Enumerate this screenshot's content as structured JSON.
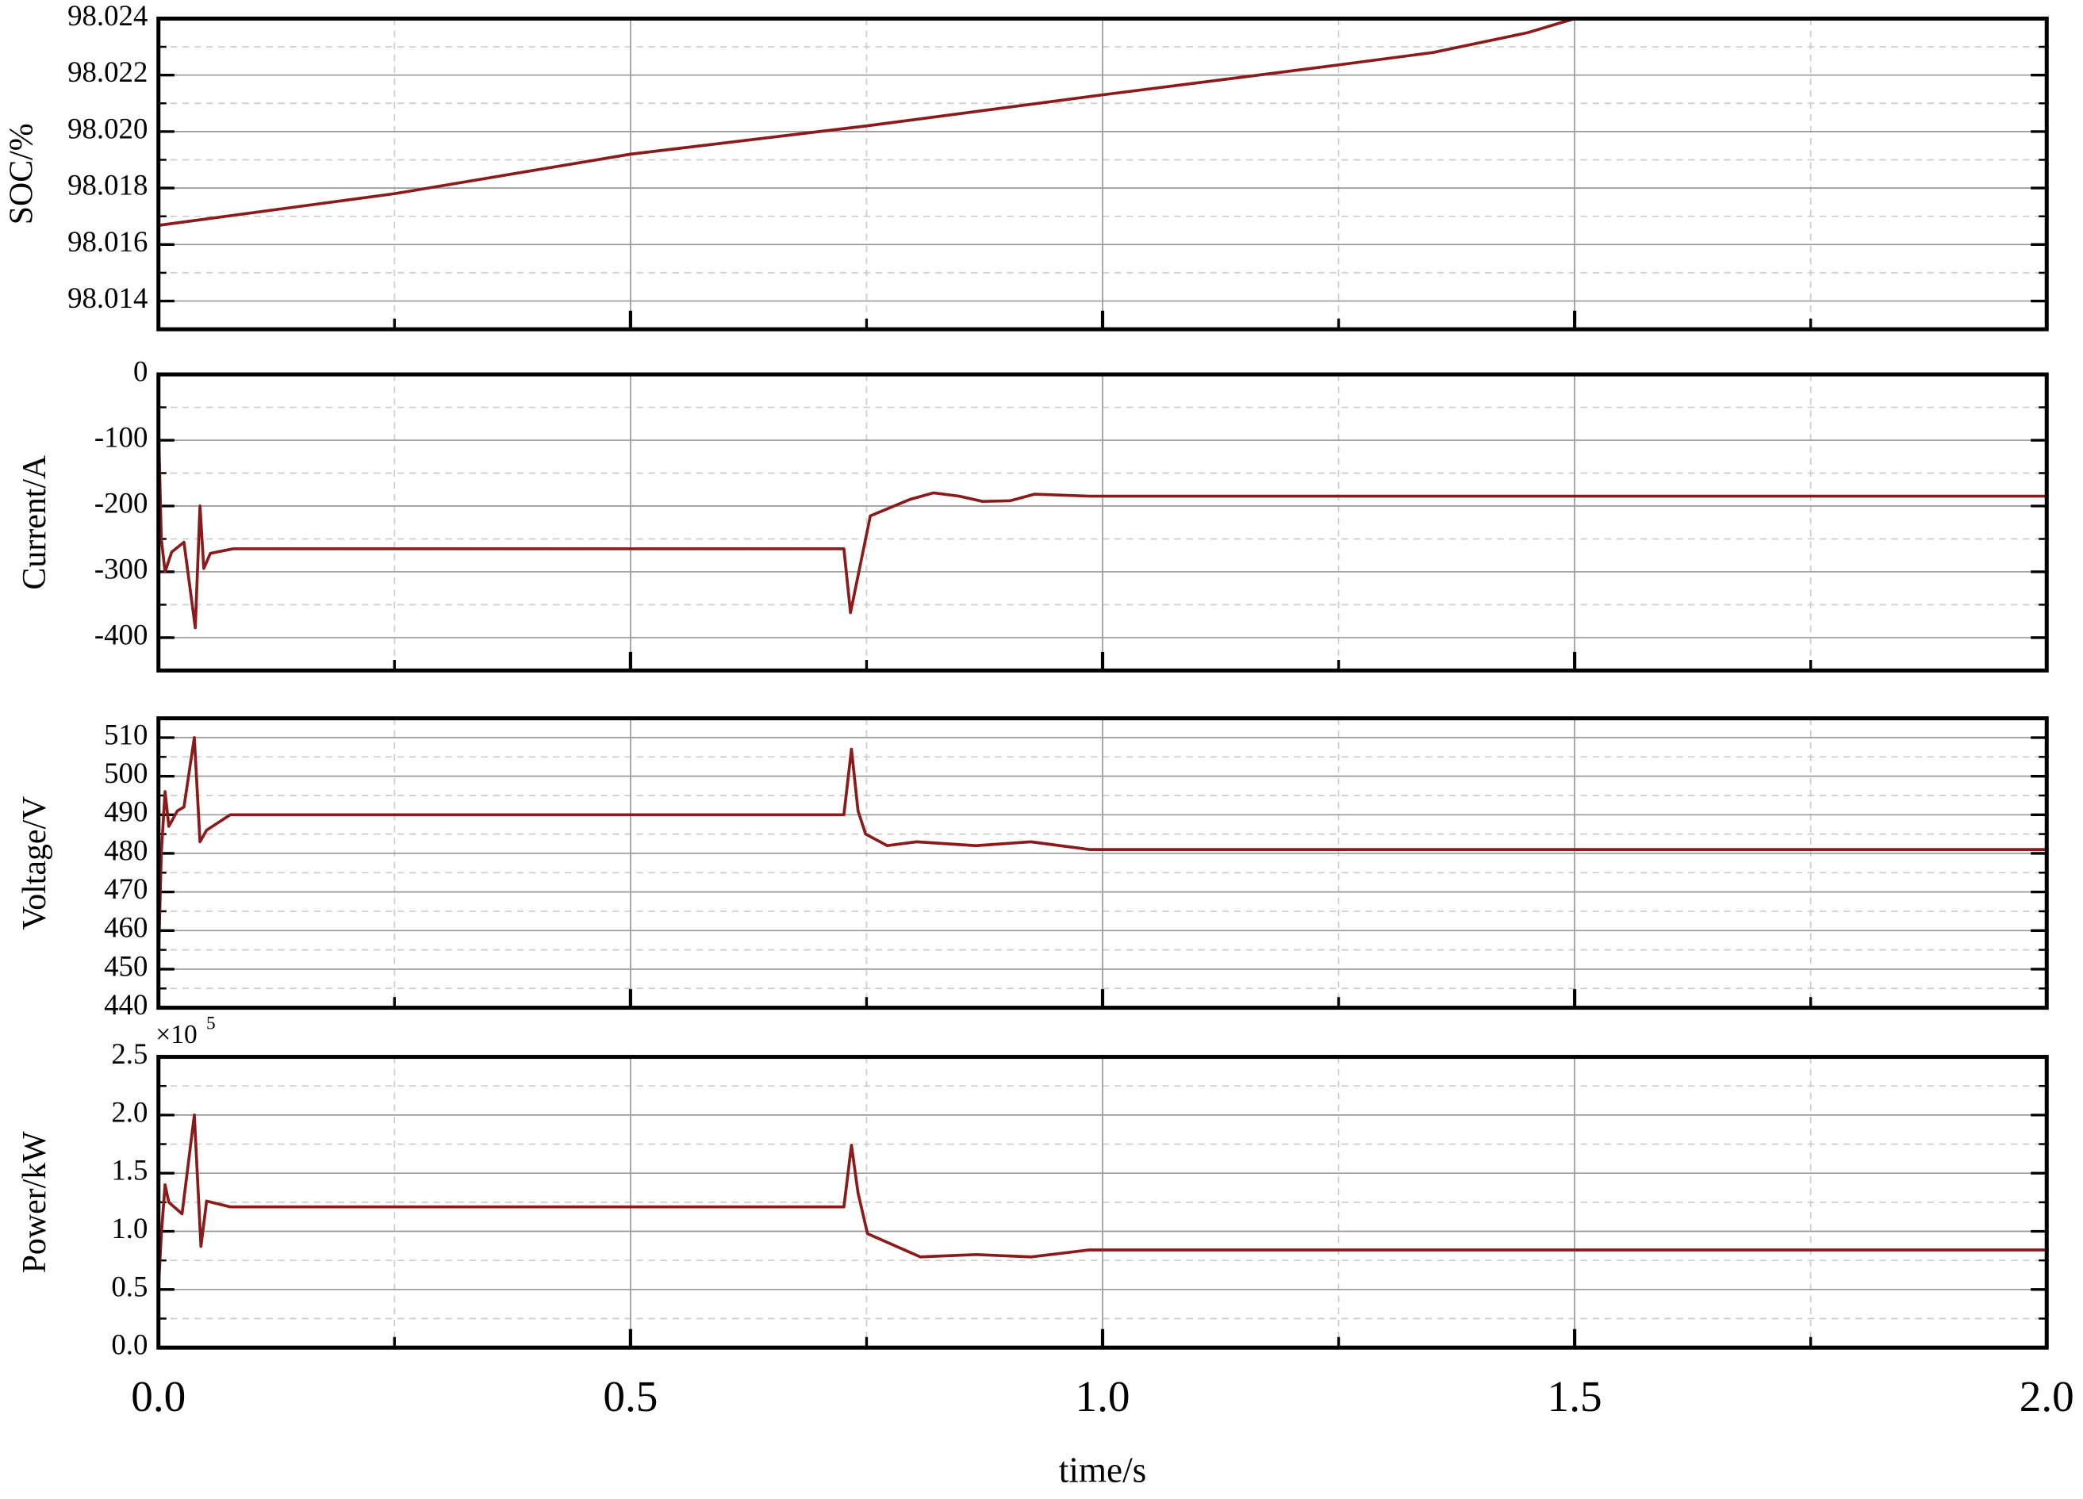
{
  "chart_data": [
    {
      "type": "line",
      "y_label": "SOC/%",
      "color": "#8b1a1a",
      "x": [
        0,
        0.25,
        0.5,
        0.75,
        1.0,
        1.25,
        1.35,
        1.45,
        1.5
      ],
      "values": [
        98.01668,
        98.0178,
        98.0192,
        98.0202,
        98.0213,
        98.02236,
        98.0228,
        98.0235,
        98.024
      ],
      "xlim": [
        0,
        2
      ],
      "ylim": [
        98.013,
        98.024
      ],
      "yticks": [
        98.014,
        98.016,
        98.018,
        {
          "value": 98.02,
          "label": "98.020"
        },
        98.022,
        98.024
      ],
      "grid": true
    },
    {
      "type": "line",
      "y_label": "Current/A",
      "color": "#8b1a1a",
      "x": [
        0,
        0.003,
        0.007,
        0.014,
        0.027,
        0.039,
        0.044,
        0.048,
        0.055,
        0.079,
        0.726,
        0.733,
        0.754,
        0.796,
        0.821,
        0.848,
        0.873,
        0.902,
        0.928,
        0.986,
        2.0
      ],
      "values": [
        -73,
        -250,
        -300,
        -270,
        -255,
        -385,
        -200,
        -295,
        -272,
        -265,
        -265,
        -362,
        -215,
        -190,
        -180,
        -185,
        -193,
        -192,
        -182,
        -185,
        -185
      ],
      "xlim": [
        0,
        2
      ],
      "ylim": [
        -450,
        0
      ],
      "yticks": [
        -400,
        -300,
        -200,
        -100,
        0
      ],
      "grid": true
    },
    {
      "type": "line",
      "y_label": "Voltage/V",
      "color": "#8b1a1a",
      "x": [
        0,
        0.003,
        0.007,
        0.011,
        0.02,
        0.027,
        0.038,
        0.044,
        0.051,
        0.076,
        0.726,
        0.734,
        0.741,
        0.749,
        0.772,
        0.803,
        0.866,
        0.924,
        0.986,
        2.0
      ],
      "values": [
        452,
        480,
        496,
        487,
        491,
        492,
        510,
        483,
        486,
        490,
        490,
        507,
        491,
        485,
        482,
        483,
        482,
        483,
        481,
        481
      ],
      "xlim": [
        0,
        2
      ],
      "ylim": [
        440,
        515
      ],
      "yticks": [
        440,
        450,
        460,
        470,
        480,
        490,
        500,
        510
      ],
      "grid": true
    },
    {
      "type": "line",
      "y_label": "Power/kW",
      "x_label": "time/s",
      "color": "#8b1a1a",
      "multiplier_base": "×10",
      "multiplier_exponent": "5",
      "x": [
        0,
        0.003,
        0.007,
        0.011,
        0.025,
        0.038,
        0.045,
        0.051,
        0.076,
        0.726,
        0.734,
        0.741,
        0.751,
        0.807,
        0.866,
        0.924,
        0.986,
        2.0
      ],
      "values": [
        0.51,
        0.97,
        1.4,
        1.25,
        1.15,
        2.0,
        0.87,
        1.26,
        1.21,
        1.21,
        1.74,
        1.33,
        0.98,
        0.78,
        0.8,
        0.78,
        0.84,
        0.84
      ],
      "xlim": [
        0,
        2
      ],
      "ylim": [
        0,
        2.5
      ],
      "xticks": [
        {
          "value": 0,
          "label": "0.0"
        },
        0.5,
        {
          "value": 1,
          "label": "1.0"
        },
        1.5,
        {
          "value": 2,
          "label": "2.0"
        }
      ],
      "yticks": [
        {
          "value": 0,
          "label": "0.0"
        },
        0.5,
        {
          "value": 1,
          "label": "1.0"
        },
        1.5,
        {
          "value": 2,
          "label": "2.0"
        },
        2.5
      ],
      "grid": true
    }
  ]
}
